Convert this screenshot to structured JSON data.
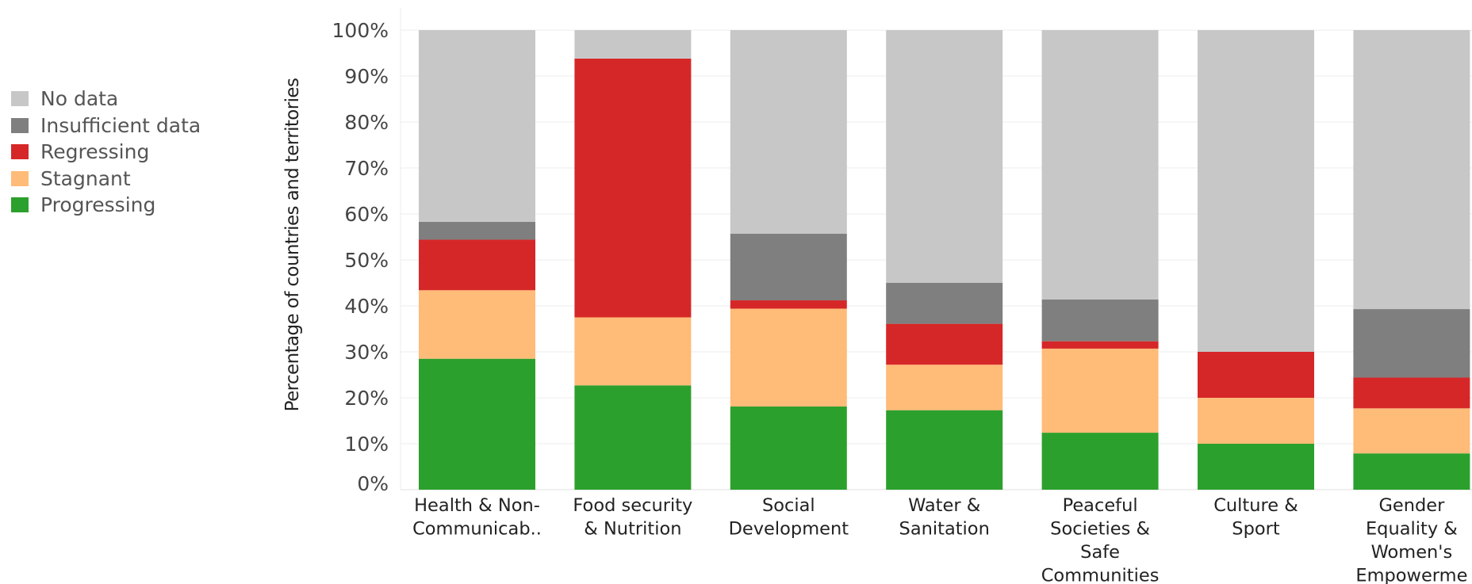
{
  "chart_data": {
    "type": "bar",
    "stacked": true,
    "normalized": true,
    "ylabel": "Percentage of countries and territories",
    "ylim": [
      0,
      100
    ],
    "yticks": [
      "0%",
      "10%",
      "20%",
      "30%",
      "40%",
      "50%",
      "60%",
      "70%",
      "80%",
      "90%",
      "100%"
    ],
    "grid": true,
    "legend_position": "left",
    "categories": [
      [
        "Health & Non-",
        "Communicab.."
      ],
      [
        "Food security",
        "& Nutrition"
      ],
      [
        "Social",
        "Development"
      ],
      [
        "Water &",
        "Sanitation"
      ],
      [
        "Peaceful",
        "Societies &",
        "Safe",
        "Communities"
      ],
      [
        "Culture &",
        "Sport"
      ],
      [
        "Gender",
        "Equality &",
        "Women's",
        "Empowerme"
      ]
    ],
    "series": [
      {
        "name": "Progressing",
        "color": "#2ca02c",
        "values": [
          28.5,
          22.7,
          18.1,
          17.3,
          12.4,
          10.0,
          7.9
        ]
      },
      {
        "name": "Stagnant",
        "color": "#ffbb78",
        "values": [
          14.9,
          14.8,
          21.3,
          9.9,
          18.3,
          10.0,
          9.8
        ]
      },
      {
        "name": "Regressing",
        "color": "#d62728",
        "values": [
          11.0,
          56.3,
          1.8,
          8.9,
          1.6,
          10.0,
          6.7
        ]
      },
      {
        "name": "Insufficient data",
        "color": "#7f7f7f",
        "values": [
          3.9,
          0.0,
          14.5,
          8.9,
          9.1,
          0.0,
          14.9
        ]
      },
      {
        "name": "No data",
        "color": "#c7c7c7",
        "values": [
          41.7,
          6.2,
          44.3,
          55.0,
          58.6,
          70.0,
          60.7
        ]
      }
    ],
    "legend_order": [
      "No data",
      "Insufficient data",
      "Regressing",
      "Stagnant",
      "Progressing"
    ]
  }
}
